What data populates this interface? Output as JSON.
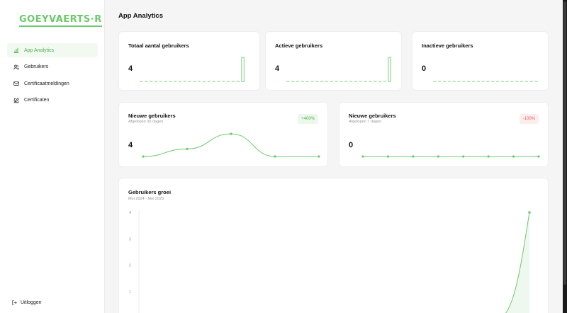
{
  "brand": {
    "logo_text": "GOEYVAERTS·R",
    "accent": "#6cc96c"
  },
  "sidebar": {
    "items": [
      {
        "label": "App Analytics",
        "icon": "bar-chart-icon",
        "active": true
      },
      {
        "label": "Gebruikers",
        "icon": "users-icon",
        "active": false
      },
      {
        "label": "Certificaatmeldingen",
        "icon": "mail-icon",
        "active": false
      },
      {
        "label": "Certificaten",
        "icon": "edit-icon",
        "active": false
      }
    ],
    "logout": {
      "label": "Uitloggen",
      "icon": "logout-icon"
    }
  },
  "page": {
    "title": "App Analytics"
  },
  "stats": [
    {
      "title": "Totaal aantal gebruikers",
      "value": "4"
    },
    {
      "title": "Actieve gebruikers",
      "value": "4"
    },
    {
      "title": "Inactieve gebruikers",
      "value": "0"
    }
  ],
  "trends": [
    {
      "title": "Nieuwe gebruikers",
      "subtitle": "Afgelopen 30 dagen",
      "value": "4",
      "badge": "+400%",
      "direction": "up"
    },
    {
      "title": "Nieuwe gebruikers",
      "subtitle": "Afgelopen 7 dagen",
      "value": "0",
      "badge": "-100%",
      "direction": "down"
    }
  ],
  "growth": {
    "title": "Gebruikers groei",
    "subtitle": "Mei 2024 - Mei 2025",
    "y_ticks": [
      "4",
      "3",
      "2",
      "1"
    ]
  },
  "chart_data": [
    {
      "type": "bar",
      "title": "Totaal aantal gebruikers",
      "values": [
        0,
        0,
        0,
        0,
        0,
        0,
        0,
        0,
        0,
        0,
        0,
        0,
        0,
        0,
        0,
        0,
        0,
        0,
        0,
        0,
        0,
        4
      ],
      "ylim": [
        0,
        4
      ]
    },
    {
      "type": "bar",
      "title": "Actieve gebruikers",
      "values": [
        0,
        0,
        0,
        0,
        0,
        0,
        0,
        0,
        0,
        0,
        0,
        0,
        0,
        0,
        0,
        0,
        0,
        0,
        0,
        0,
        0,
        4
      ],
      "ylim": [
        0,
        4
      ]
    },
    {
      "type": "bar",
      "title": "Inactieve gebruikers",
      "values": [
        0,
        0,
        0,
        0,
        0,
        0,
        0,
        0,
        0,
        0,
        0,
        0,
        0,
        0,
        0,
        0,
        0,
        0,
        0,
        0,
        0,
        0
      ],
      "ylim": [
        0,
        4
      ]
    },
    {
      "type": "line",
      "title": "Nieuwe gebruikers",
      "values": [
        0,
        1,
        3,
        0,
        0
      ],
      "ylim": [
        0,
        3
      ]
    },
    {
      "type": "line",
      "title": "Nieuwe gebruikers",
      "values": [
        0,
        0,
        0,
        0,
        0,
        0,
        0,
        0
      ],
      "ylim": [
        0,
        3
      ]
    },
    {
      "type": "area",
      "title": "Gebruikers groei",
      "values": [
        0,
        0,
        0,
        0,
        0,
        0,
        0,
        0,
        0,
        0,
        0,
        0,
        4
      ],
      "ylim": [
        0,
        4
      ]
    }
  ]
}
